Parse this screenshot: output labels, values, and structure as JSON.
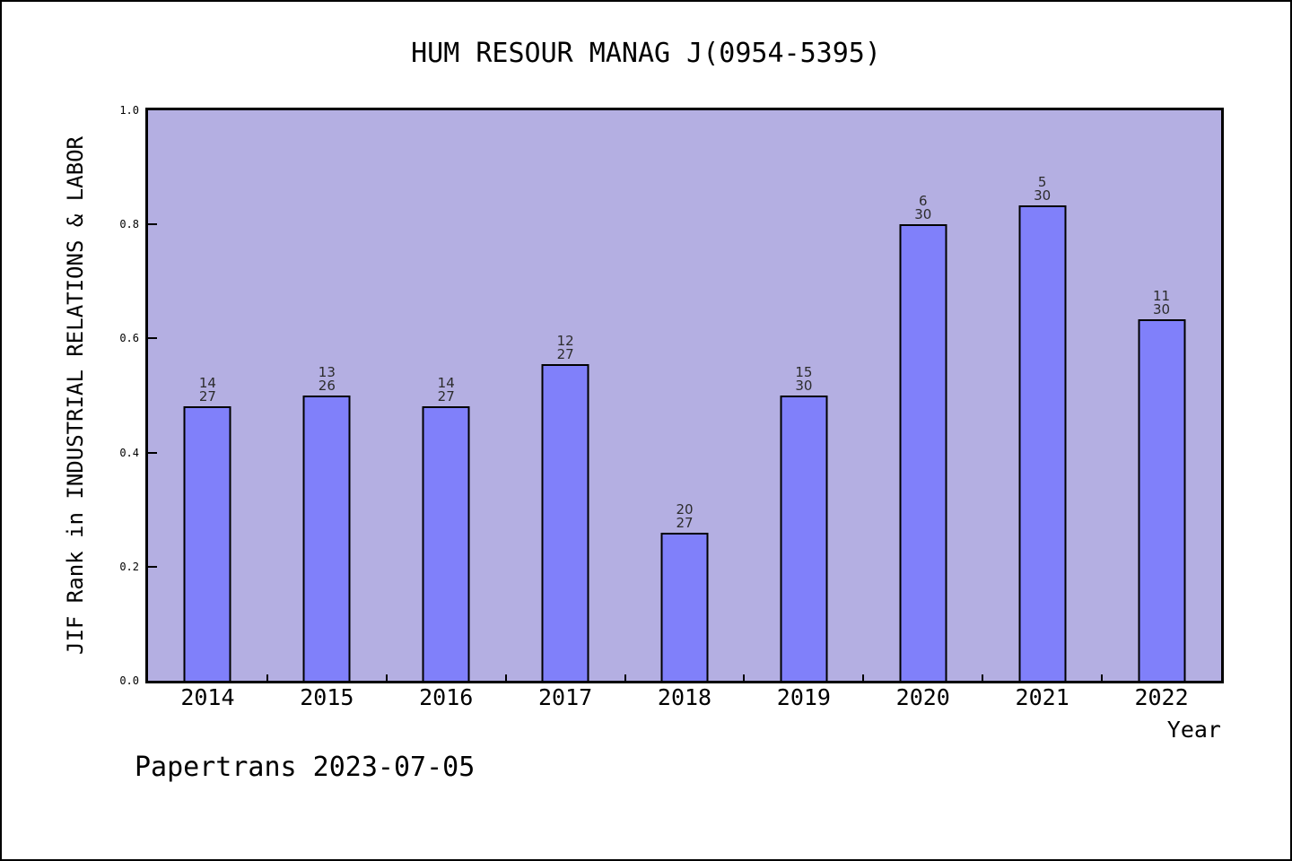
{
  "footer": "Papertrans 2023-07-05",
  "colors": {
    "bar_fill": "#8080fa",
    "bar_edge": "#000000",
    "plot_background": "#b4afe2",
    "page_background": "#ffffff",
    "frame": "#000000",
    "label_text": "#2b2b2b"
  },
  "chart_data": {
    "type": "bar",
    "title": "HUM RESOUR MANAG J(0954-5395)",
    "xlabel": "Year",
    "ylabel": "JIF Rank in INDUSTRIAL RELATIONS & LABOR",
    "categories": [
      "2014",
      "2015",
      "2016",
      "2017",
      "2018",
      "2019",
      "2020",
      "2021",
      "2022"
    ],
    "values": [
      0.4815,
      0.5,
      0.4815,
      0.5556,
      0.2593,
      0.5,
      0.8,
      0.8333,
      0.6333
    ],
    "bar_labels": [
      {
        "rank": "14",
        "total": "27"
      },
      {
        "rank": "13",
        "total": "26"
      },
      {
        "rank": "14",
        "total": "27"
      },
      {
        "rank": "12",
        "total": "27"
      },
      {
        "rank": "20",
        "total": "27"
      },
      {
        "rank": "15",
        "total": "30"
      },
      {
        "rank": "6",
        "total": "30"
      },
      {
        "rank": "5",
        "total": "30"
      },
      {
        "rank": "11",
        "total": "30"
      }
    ],
    "ylim": [
      0.0,
      1.0
    ],
    "yticks": [
      {
        "value": 0.0,
        "label": "0.0"
      },
      {
        "value": 0.2,
        "label": "0.2"
      },
      {
        "value": 0.4,
        "label": "0.4"
      },
      {
        "value": 0.6,
        "label": "0.6"
      },
      {
        "value": 0.8,
        "label": "0.8"
      },
      {
        "value": 1.0,
        "label": "1.0"
      }
    ],
    "grid": false,
    "legend": false
  }
}
